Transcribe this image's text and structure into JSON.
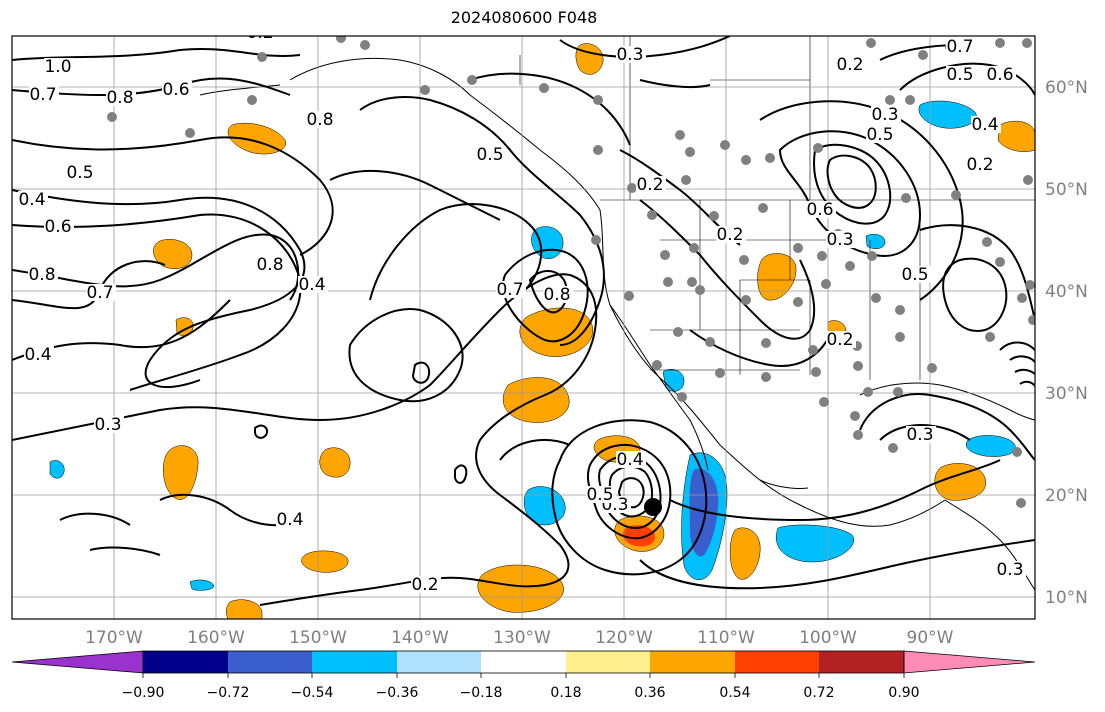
{
  "title": "2024080600 F048",
  "map": {
    "lon_labels": [
      "170°W",
      "160°W",
      "150°W",
      "140°W",
      "130°W",
      "120°W",
      "110°W",
      "100°W",
      "90°W"
    ],
    "lat_labels": [
      "60°N",
      "50°N",
      "40°N",
      "30°N",
      "20°N",
      "10°N"
    ],
    "contour_labels": [
      "1.0",
      "0.7",
      "0.8",
      "0.6",
      "0.2",
      "0.5",
      "0.4",
      "0.6",
      "0.8",
      "0.7",
      "0.4",
      "0.8",
      "0.4",
      "0.3",
      "0.4",
      "0.2",
      "0.3",
      "0.5",
      "0.2",
      "0.2",
      "0.3",
      "0.5",
      "0.8",
      "0.7",
      "0.2",
      "0.4",
      "0.3",
      "0.6",
      "0.5",
      "0.2",
      "0.5",
      "0.3",
      "0.7",
      "0.6",
      "0.8",
      "0.4",
      "0.3",
      "0.5",
      "0.2",
      "0.3"
    ],
    "colors": {
      "frame": "#000000",
      "grid": "#9a9a9a",
      "land_lines": "#000000",
      "stations": "#808080",
      "storm_center": "#000000",
      "axis_label": "#808080"
    }
  },
  "colorbar": {
    "ticks": [
      "−0.90",
      "−0.72",
      "−0.54",
      "−0.36",
      "−0.18",
      "0.18",
      "0.36",
      "0.54",
      "0.72",
      "0.90"
    ],
    "segments": [
      {
        "color": "#9a32cd"
      },
      {
        "color": "#00008b"
      },
      {
        "color": "#3a5fcd"
      },
      {
        "color": "#00bfff"
      },
      {
        "color": "#b0e2ff"
      },
      {
        "color": "#ffffff"
      },
      {
        "color": "#fff08f"
      },
      {
        "color": "#ffa500"
      },
      {
        "color": "#ff4000"
      },
      {
        "color": "#b22222"
      },
      {
        "color": "#ff8cb4"
      }
    ]
  }
}
